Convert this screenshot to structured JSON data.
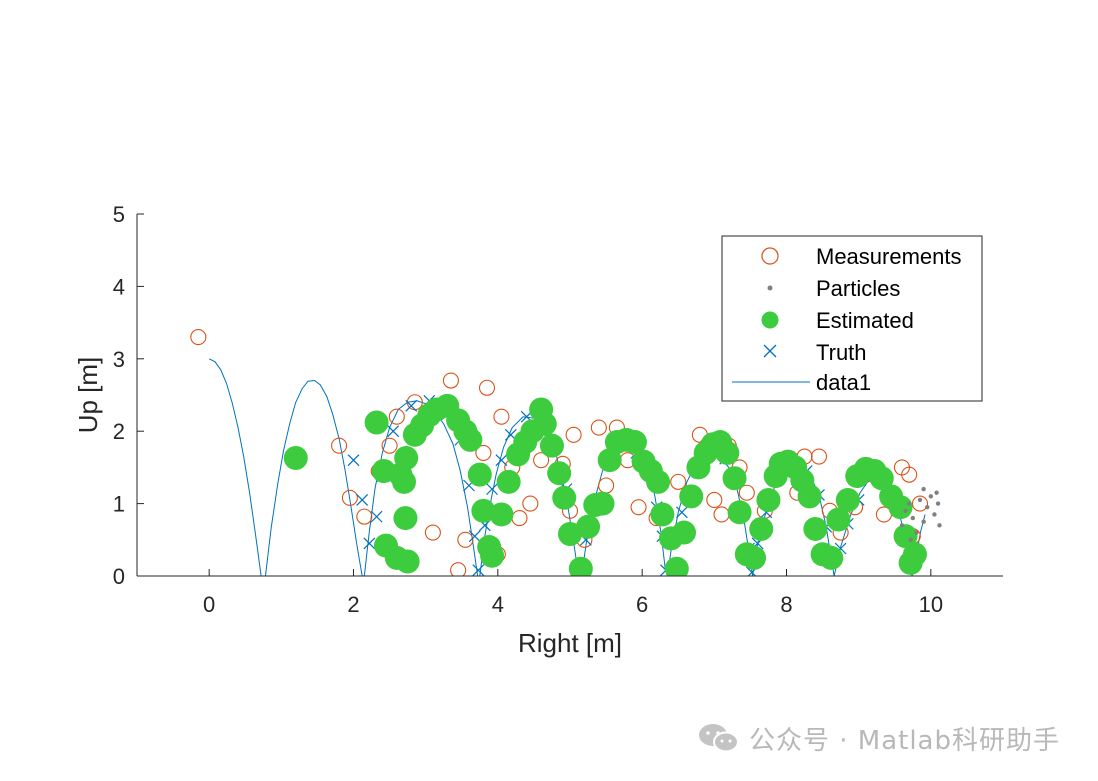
{
  "chart_data": {
    "type": "scatter",
    "xlabel": "Right [m]",
    "ylabel": "Up [m]",
    "xlim": [
      -1,
      11
    ],
    "ylim": [
      0,
      5
    ],
    "xticks": [
      "0",
      "2",
      "4",
      "6",
      "8",
      "10"
    ],
    "xtick_values": [
      0,
      2,
      4,
      6,
      8,
      10
    ],
    "yticks": [
      "0",
      "1",
      "2",
      "3",
      "4",
      "5"
    ],
    "ytick_values": [
      0,
      1,
      2,
      3,
      4,
      5
    ],
    "grid": false,
    "legend_position": "top-right",
    "series": [
      {
        "name": "Measurements",
        "marker": "open-circle",
        "color": "#d95319",
        "points": [
          [
            -0.15,
            3.3
          ],
          [
            1.8,
            1.8
          ],
          [
            1.95,
            1.08
          ],
          [
            2.15,
            0.82
          ],
          [
            2.35,
            1.45
          ],
          [
            2.5,
            1.8
          ],
          [
            2.6,
            2.2
          ],
          [
            2.85,
            2.4
          ],
          [
            3.1,
            0.6
          ],
          [
            3.35,
            2.7
          ],
          [
            3.45,
            0.08
          ],
          [
            3.55,
            0.5
          ],
          [
            3.8,
            1.7
          ],
          [
            3.85,
            2.6
          ],
          [
            4.0,
            0.3
          ],
          [
            4.05,
            2.2
          ],
          [
            4.2,
            1.5
          ],
          [
            4.3,
            0.8
          ],
          [
            4.45,
            1.0
          ],
          [
            4.6,
            1.6
          ],
          [
            4.9,
            1.55
          ],
          [
            5.0,
            0.9
          ],
          [
            5.05,
            1.95
          ],
          [
            5.2,
            0.5
          ],
          [
            5.4,
            2.05
          ],
          [
            5.5,
            1.25
          ],
          [
            5.65,
            2.05
          ],
          [
            5.8,
            1.6
          ],
          [
            5.95,
            0.95
          ],
          [
            6.05,
            1.6
          ],
          [
            6.2,
            0.8
          ],
          [
            6.5,
            1.3
          ],
          [
            6.8,
            1.95
          ],
          [
            6.9,
            1.8
          ],
          [
            7.0,
            1.05
          ],
          [
            7.1,
            0.85
          ],
          [
            7.2,
            1.8
          ],
          [
            7.35,
            1.5
          ],
          [
            7.45,
            1.15
          ],
          [
            7.7,
            0.9
          ],
          [
            8.0,
            1.55
          ],
          [
            8.15,
            1.15
          ],
          [
            8.25,
            1.65
          ],
          [
            8.45,
            1.65
          ],
          [
            8.6,
            0.9
          ],
          [
            8.75,
            0.6
          ],
          [
            8.95,
            0.95
          ],
          [
            9.1,
            1.4
          ],
          [
            9.2,
            1.45
          ],
          [
            9.35,
            0.85
          ],
          [
            9.6,
            1.5
          ],
          [
            9.7,
            1.4
          ],
          [
            9.75,
            0.55
          ],
          [
            9.85,
            1.0
          ]
        ]
      },
      {
        "name": "Particles",
        "marker": "dot",
        "color": "#808080",
        "points": [
          [
            9.6,
            0.7
          ],
          [
            9.65,
            0.9
          ],
          [
            9.7,
            1.0
          ],
          [
            9.75,
            0.8
          ],
          [
            9.8,
            0.6
          ],
          [
            9.85,
            1.05
          ],
          [
            9.9,
            0.75
          ],
          [
            9.95,
            0.95
          ],
          [
            10.0,
            1.1
          ],
          [
            10.05,
            0.85
          ],
          [
            10.1,
            1.0
          ],
          [
            10.12,
            0.7
          ],
          [
            9.72,
            0.5
          ],
          [
            9.9,
            1.2
          ],
          [
            10.08,
            1.15
          ]
        ]
      },
      {
        "name": "Estimated",
        "marker": "filled-circle",
        "color": "#3dcc3d",
        "points": [
          [
            1.2,
            1.63
          ],
          [
            2.32,
            2.12
          ],
          [
            2.42,
            1.45
          ],
          [
            2.45,
            0.42
          ],
          [
            2.6,
            0.25
          ],
          [
            2.65,
            1.4
          ],
          [
            2.7,
            1.3
          ],
          [
            2.72,
            0.8
          ],
          [
            2.73,
            1.63
          ],
          [
            2.75,
            0.2
          ],
          [
            2.85,
            1.95
          ],
          [
            2.95,
            2.08
          ],
          [
            3.05,
            2.22
          ],
          [
            3.15,
            2.3
          ],
          [
            3.3,
            2.35
          ],
          [
            3.45,
            2.15
          ],
          [
            3.55,
            2.0
          ],
          [
            3.62,
            1.88
          ],
          [
            3.75,
            1.4
          ],
          [
            3.8,
            0.9
          ],
          [
            3.88,
            0.4
          ],
          [
            3.92,
            0.28
          ],
          [
            4.05,
            0.85
          ],
          [
            4.15,
            1.3
          ],
          [
            4.28,
            1.68
          ],
          [
            4.38,
            1.85
          ],
          [
            4.48,
            2.0
          ],
          [
            4.6,
            2.3
          ],
          [
            4.65,
            2.1
          ],
          [
            4.75,
            1.8
          ],
          [
            4.85,
            1.42
          ],
          [
            4.92,
            1.08
          ],
          [
            5.0,
            0.58
          ],
          [
            5.15,
            0.1
          ],
          [
            5.25,
            0.68
          ],
          [
            5.35,
            0.98
          ],
          [
            5.45,
            1.0
          ],
          [
            5.55,
            1.6
          ],
          [
            5.65,
            1.85
          ],
          [
            5.78,
            1.88
          ],
          [
            5.9,
            1.85
          ],
          [
            6.02,
            1.58
          ],
          [
            6.12,
            1.45
          ],
          [
            6.22,
            1.3
          ],
          [
            6.28,
            0.85
          ],
          [
            6.4,
            0.52
          ],
          [
            6.48,
            0.1
          ],
          [
            6.58,
            0.6
          ],
          [
            6.68,
            1.1
          ],
          [
            6.78,
            1.5
          ],
          [
            6.88,
            1.7
          ],
          [
            6.98,
            1.82
          ],
          [
            7.08,
            1.85
          ],
          [
            7.18,
            1.7
          ],
          [
            7.28,
            1.35
          ],
          [
            7.35,
            0.88
          ],
          [
            7.45,
            0.3
          ],
          [
            7.55,
            0.25
          ],
          [
            7.65,
            0.65
          ],
          [
            7.75,
            1.05
          ],
          [
            7.85,
            1.38
          ],
          [
            7.92,
            1.55
          ],
          [
            8.02,
            1.58
          ],
          [
            8.12,
            1.5
          ],
          [
            8.22,
            1.32
          ],
          [
            8.32,
            1.1
          ],
          [
            8.4,
            0.65
          ],
          [
            8.5,
            0.3
          ],
          [
            8.62,
            0.25
          ],
          [
            8.72,
            0.78
          ],
          [
            8.85,
            1.05
          ],
          [
            8.98,
            1.38
          ],
          [
            9.1,
            1.48
          ],
          [
            9.22,
            1.45
          ],
          [
            9.32,
            1.35
          ],
          [
            9.45,
            1.1
          ],
          [
            9.58,
            0.95
          ],
          [
            9.65,
            0.55
          ],
          [
            9.72,
            0.18
          ],
          [
            9.78,
            0.3
          ]
        ]
      },
      {
        "name": "Truth",
        "marker": "x",
        "color": "#0072bd",
        "points": [
          [
            2.0,
            1.6
          ],
          [
            2.12,
            1.05
          ],
          [
            2.22,
            0.45
          ],
          [
            2.32,
            0.82
          ],
          [
            2.4,
            1.38
          ],
          [
            2.55,
            2.0
          ],
          [
            2.8,
            2.35
          ],
          [
            3.05,
            2.42
          ],
          [
            3.3,
            2.3
          ],
          [
            3.48,
            1.88
          ],
          [
            3.6,
            1.25
          ],
          [
            3.68,
            0.55
          ],
          [
            3.73,
            0.08
          ],
          [
            3.82,
            0.7
          ],
          [
            3.92,
            1.2
          ],
          [
            4.05,
            1.6
          ],
          [
            4.18,
            1.95
          ],
          [
            4.4,
            2.2
          ],
          [
            4.6,
            2.15
          ],
          [
            4.8,
            1.8
          ],
          [
            4.95,
            1.2
          ],
          [
            5.05,
            0.55
          ],
          [
            5.12,
            0.12
          ],
          [
            5.22,
            0.5
          ],
          [
            5.35,
            0.98
          ],
          [
            5.52,
            1.6
          ],
          [
            5.72,
            1.9
          ],
          [
            5.92,
            1.7
          ],
          [
            6.1,
            1.45
          ],
          [
            6.2,
            0.95
          ],
          [
            6.28,
            0.55
          ],
          [
            6.33,
            0.08
          ],
          [
            6.42,
            0.5
          ],
          [
            6.55,
            0.88
          ],
          [
            6.75,
            1.52
          ],
          [
            6.95,
            1.7
          ],
          [
            7.15,
            1.62
          ],
          [
            7.3,
            1.3
          ],
          [
            7.4,
            0.85
          ],
          [
            7.48,
            0.38
          ],
          [
            7.52,
            0.05
          ],
          [
            7.6,
            0.45
          ],
          [
            7.72,
            0.88
          ],
          [
            7.9,
            1.42
          ],
          [
            8.1,
            1.55
          ],
          [
            8.28,
            1.45
          ],
          [
            8.45,
            1.12
          ],
          [
            8.55,
            0.68
          ],
          [
            8.63,
            0.2
          ],
          [
            8.75,
            0.38
          ],
          [
            8.85,
            0.72
          ],
          [
            9.0,
            1.05
          ],
          [
            9.2,
            1.38
          ],
          [
            9.38,
            1.35
          ],
          [
            9.55,
            1.0
          ],
          [
            9.65,
            0.6
          ],
          [
            9.72,
            0.25
          ],
          [
            9.8,
            0.3
          ]
        ]
      },
      {
        "name": "data1",
        "marker": "line",
        "color": "#0072bd",
        "points": [
          [
            0.0,
            3.0
          ],
          [
            0.08,
            2.96
          ],
          [
            0.16,
            2.85
          ],
          [
            0.24,
            2.66
          ],
          [
            0.32,
            2.39
          ],
          [
            0.4,
            2.05
          ],
          [
            0.48,
            1.64
          ],
          [
            0.56,
            1.15
          ],
          [
            0.64,
            0.59
          ],
          [
            0.72,
            0.0
          ],
          [
            0.78,
            0.0
          ],
          [
            0.86,
            0.67
          ],
          [
            0.95,
            1.27
          ],
          [
            1.03,
            1.73
          ],
          [
            1.12,
            2.12
          ],
          [
            1.2,
            2.4
          ],
          [
            1.29,
            2.59
          ],
          [
            1.37,
            2.69
          ],
          [
            1.46,
            2.7
          ],
          [
            1.54,
            2.64
          ],
          [
            1.63,
            2.48
          ],
          [
            1.71,
            2.24
          ],
          [
            1.8,
            1.9
          ],
          [
            1.88,
            1.48
          ],
          [
            1.96,
            0.99
          ],
          [
            2.05,
            0.41
          ],
          [
            2.12,
            0.0
          ],
          [
            2.15,
            0.0
          ],
          [
            2.22,
            0.62
          ],
          [
            2.3,
            1.22
          ],
          [
            2.4,
            1.7
          ],
          [
            2.5,
            2.05
          ],
          [
            2.62,
            2.3
          ],
          [
            2.75,
            2.4
          ],
          [
            2.88,
            2.42
          ],
          [
            3.0,
            2.38
          ],
          [
            3.12,
            2.28
          ],
          [
            3.25,
            2.1
          ],
          [
            3.38,
            1.82
          ],
          [
            3.48,
            1.45
          ],
          [
            3.58,
            0.95
          ],
          [
            3.66,
            0.42
          ],
          [
            3.72,
            0.0
          ],
          [
            3.75,
            0.0
          ],
          [
            3.82,
            0.55
          ],
          [
            3.9,
            1.02
          ],
          [
            3.98,
            1.42
          ],
          [
            4.08,
            1.78
          ],
          [
            4.2,
            2.05
          ],
          [
            4.35,
            2.2
          ],
          [
            4.5,
            2.18
          ],
          [
            4.65,
            2.05
          ],
          [
            4.78,
            1.78
          ],
          [
            4.88,
            1.4
          ],
          [
            4.98,
            0.9
          ],
          [
            5.06,
            0.4
          ],
          [
            5.12,
            0.0
          ],
          [
            5.16,
            0.0
          ],
          [
            5.24,
            0.55
          ],
          [
            5.34,
            1.05
          ],
          [
            5.45,
            1.45
          ],
          [
            5.58,
            1.75
          ],
          [
            5.72,
            1.9
          ],
          [
            5.86,
            1.88
          ],
          [
            6.0,
            1.72
          ],
          [
            6.1,
            1.45
          ],
          [
            6.18,
            1.08
          ],
          [
            6.26,
            0.6
          ],
          [
            6.32,
            0.1
          ],
          [
            6.35,
            0.0
          ],
          [
            6.4,
            0.35
          ],
          [
            6.5,
            0.88
          ],
          [
            6.62,
            1.3
          ],
          [
            6.75,
            1.56
          ],
          [
            6.9,
            1.7
          ],
          [
            7.05,
            1.68
          ],
          [
            7.2,
            1.5
          ],
          [
            7.32,
            1.18
          ],
          [
            7.42,
            0.72
          ],
          [
            7.5,
            0.2
          ],
          [
            7.53,
            0.0
          ],
          [
            7.6,
            0.45
          ],
          [
            7.72,
            0.9
          ],
          [
            7.86,
            1.3
          ],
          [
            8.0,
            1.52
          ],
          [
            8.15,
            1.58
          ],
          [
            8.3,
            1.45
          ],
          [
            8.45,
            1.12
          ],
          [
            8.55,
            0.68
          ],
          [
            8.63,
            0.18
          ],
          [
            8.66,
            0.0
          ],
          [
            8.75,
            0.4
          ],
          [
            8.88,
            0.82
          ],
          [
            9.02,
            1.15
          ],
          [
            9.18,
            1.38
          ],
          [
            9.34,
            1.38
          ],
          [
            9.48,
            1.15
          ],
          [
            9.6,
            0.72
          ],
          [
            9.7,
            0.25
          ],
          [
            9.74,
            0.0
          ],
          [
            9.8,
            0.3
          ],
          [
            9.86,
            0.62
          ],
          [
            9.92,
            0.85
          ]
        ]
      }
    ]
  },
  "watermark": {
    "icon": "wechat-icon",
    "text": "公众号 · Matlab科研助手"
  }
}
